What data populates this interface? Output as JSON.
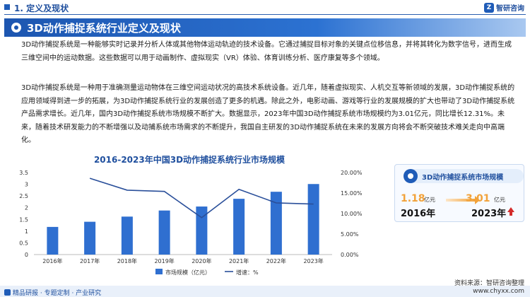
{
  "header": {
    "section": "1. 定义及现状",
    "brand": "智研咨询"
  },
  "title": "3D动作捕捉系统行业定义及现状",
  "paragraphs": [
    "3D动作捕捉系统是一种能够实时记录并分析人体或其他物体运动轨迹的技术设备。它通过捕捉目标对象的关键点位移信息，并将其转化为数字信号，进而生成三维空间中的运动数据。这些数据可以用于动画制作、虚拟现实（VR）体验、体育训练分析、医疗康复等多个领域。",
    "3D动作捕捉系统是一种用于准确测量运动物体在三维空间运动状况的高技术系统设备。近几年，随着虚拟现实、人机交互等新领域的发展，3D动作捕捉系统的应用领域得到进一步的拓展，为3D动作捕捉系统行业的发展创造了更多的机遇。除此之外，电影动画、游戏等行业的发展规模的扩大也带动了3D动作捕捉系统产品需求增长。近几年，国内3D动作捕捉系统市场规模不断扩大。数据显示，2023年中国3D动作捕捉系统市场规模约为3.01亿元，同比增长12.31%。未来，随着技术研发能力的不断增强以及动捕系统市场需求的不断提升，我国自主研发的3D动作捕捉系统在未来的发展方向将会不断突破技术难关走向中高端化。"
  ],
  "chart_data": {
    "type": "bar",
    "title": "2016-2023年中国3D动作捕捉系统行业市场规模",
    "categories": [
      "2016年",
      "2017年",
      "2018年",
      "2019年",
      "2020年",
      "2021年",
      "2022年",
      "2023年"
    ],
    "series": [
      {
        "name": "市场规模（亿元）",
        "type": "bar",
        "axis": "left",
        "values": [
          1.18,
          1.4,
          1.62,
          1.88,
          2.05,
          2.38,
          2.68,
          3.01
        ]
      },
      {
        "name": "增速：%",
        "type": "line",
        "axis": "right",
        "values": [
          null,
          18.6,
          15.7,
          15.4,
          9.0,
          15.9,
          12.6,
          12.31
        ]
      }
    ],
    "ylim_left": [
      0,
      3.5
    ],
    "yticks_left": [
      "0",
      "0.5",
      "1",
      "1.5",
      "2",
      "2.5",
      "3",
      "3.5"
    ],
    "ylim_right": [
      0,
      20
    ],
    "yticks_right": [
      "0.00%",
      "5.00%",
      "10.00%",
      "15.00%",
      "20.00%"
    ],
    "legend": "bottom",
    "grid": false,
    "colors": {
      "bar": "#2f6fd0",
      "line": "#2a4f9a"
    }
  },
  "card": {
    "title": "3D动作捕捉系统市场规模",
    "start_value": "1.18",
    "start_unit": "亿元",
    "start_year": "2016年",
    "end_value": "3.01",
    "end_unit": "亿元",
    "end_year": "2023年"
  },
  "footer": {
    "left": "精品研报 · 专题定制 · 产业研究",
    "source": "资料来源：智研咨询整理",
    "right": "www.chyxx.com"
  }
}
